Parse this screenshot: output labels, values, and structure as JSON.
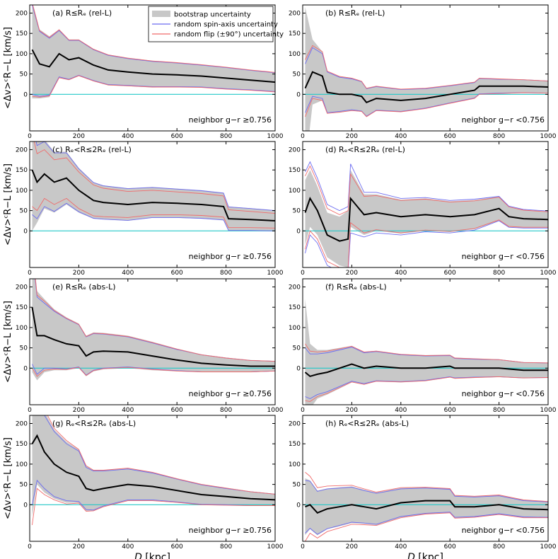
{
  "chart_data": {
    "type": "line",
    "x_label_var": "D",
    "x_label_unit": "[kpc]",
    "y_label": "<Δv>ᶜR−L [km/s]",
    "xlim": [
      0,
      1000
    ],
    "ylim": [
      -90,
      220
    ],
    "x_ticks": [
      "0",
      "200",
      "400",
      "600",
      "800",
      "1000"
    ],
    "y_ticks": [
      "0",
      "50",
      "100",
      "150",
      "200"
    ],
    "legend": {
      "position": "top-right of panel (a)",
      "entries": [
        {
          "label": "bootstrap uncertainty",
          "color": "#c8c8c8",
          "kind": "band"
        },
        {
          "label": "random spin-axis uncertainty",
          "color": "#6b6bf0",
          "kind": "line"
        },
        {
          "label": "random flip (±90°) uncertainty",
          "color": "#f06b6b",
          "kind": "line"
        }
      ]
    },
    "colors": {
      "mean": "#000000",
      "band": "#c8c8c8",
      "spin": "#6b6bf0",
      "flip": "#f06b6b",
      "zero": "#22c8c8"
    },
    "panels": [
      {
        "id": "a",
        "title": "(a) R≤Rₑ (rel-L)",
        "neighbor": "neighbor g−r ≥0.756",
        "x": [
          10,
          40,
          80,
          120,
          160,
          200,
          260,
          320,
          400,
          500,
          600,
          700,
          800,
          900,
          1000
        ],
        "mean": [
          110,
          75,
          68,
          100,
          85,
          90,
          72,
          60,
          55,
          50,
          48,
          45,
          40,
          35,
          30
        ],
        "band_half": [
          120,
          85,
          75,
          60,
          50,
          45,
          40,
          38,
          35,
          33,
          30,
          28,
          27,
          25,
          24
        ],
        "spin_half": [
          110,
          80,
          70,
          57,
          48,
          43,
          38,
          36,
          33,
          31,
          29,
          27,
          26,
          24,
          23
        ],
        "flip_half": [
          115,
          82,
          72,
          59,
          49,
          44,
          39,
          37,
          34,
          32,
          30,
          28,
          27,
          25,
          24
        ]
      },
      {
        "id": "b",
        "title": "(b) R≤Rₑ (rel-L)",
        "neighbor": "neighbor g−r <0.756",
        "x": [
          10,
          40,
          80,
          100,
          150,
          200,
          240,
          260,
          300,
          400,
          500,
          600,
          700,
          720,
          800,
          900,
          1000
        ],
        "mean": [
          15,
          55,
          45,
          5,
          0,
          0,
          -5,
          -20,
          -10,
          -15,
          -10,
          0,
          10,
          20,
          20,
          20,
          18
        ],
        "band_half": [
          200,
          80,
          60,
          50,
          45,
          40,
          38,
          35,
          30,
          28,
          25,
          22,
          20,
          20,
          18,
          16,
          15
        ],
        "spin_half": [
          60,
          60,
          55,
          50,
          42,
          38,
          36,
          34,
          29,
          27,
          24,
          21,
          19,
          19,
          17,
          16,
          15
        ],
        "flip_half": [
          70,
          65,
          60,
          52,
          44,
          40,
          37,
          35,
          30,
          28,
          25,
          22,
          20,
          20,
          18,
          16,
          15
        ]
      },
      {
        "id": "c",
        "title": "(c) Rₑ<R≤2Rₑ (rel-L)",
        "neighbor": "neighbor g−r ≥0.756",
        "x": [
          10,
          30,
          60,
          100,
          150,
          200,
          260,
          300,
          400,
          500,
          600,
          700,
          790,
          810,
          900,
          1000
        ],
        "mean": [
          150,
          120,
          140,
          120,
          130,
          100,
          75,
          70,
          65,
          70,
          68,
          65,
          60,
          30,
          28,
          25
        ],
        "band_half": [
          150,
          100,
          85,
          75,
          65,
          55,
          45,
          42,
          40,
          38,
          36,
          35,
          34,
          30,
          28,
          26
        ],
        "spin_half": [
          110,
          90,
          80,
          72,
          62,
          53,
          44,
          41,
          39,
          37,
          35,
          34,
          33,
          29,
          27,
          25
        ],
        "flip_half": [
          90,
          70,
          60,
          55,
          50,
          45,
          38,
          35,
          32,
          30,
          28,
          27,
          26,
          22,
          20,
          18
        ]
      },
      {
        "id": "d",
        "title": "(d) Rₑ<R≤2Rₑ (rel-L)",
        "neighbor": "neighbor g−r <0.756",
        "x": [
          10,
          30,
          60,
          100,
          150,
          185,
          195,
          250,
          300,
          400,
          500,
          600,
          700,
          800,
          840,
          900,
          1000
        ],
        "mean": [
          45,
          80,
          50,
          -10,
          -25,
          -20,
          80,
          40,
          45,
          35,
          40,
          35,
          40,
          55,
          35,
          30,
          28
        ],
        "band_half": [
          80,
          70,
          60,
          55,
          60,
          70,
          70,
          50,
          45,
          42,
          40,
          38,
          36,
          30,
          25,
          22,
          20
        ],
        "spin_half": [
          100,
          90,
          80,
          75,
          75,
          80,
          85,
          55,
          50,
          45,
          42,
          40,
          38,
          30,
          26,
          23,
          21
        ],
        "flip_half": [
          90,
          80,
          70,
          65,
          65,
          70,
          60,
          45,
          42,
          40,
          38,
          36,
          34,
          28,
          24,
          21,
          19
        ]
      },
      {
        "id": "e",
        "title": "(e) R≤Rₑ (abs-L)",
        "neighbor": "neighbor g−r ≥0.756",
        "x": [
          10,
          30,
          60,
          100,
          150,
          200,
          230,
          260,
          300,
          400,
          500,
          600,
          700,
          800,
          900,
          1000
        ],
        "mean": [
          150,
          80,
          80,
          70,
          60,
          55,
          30,
          40,
          42,
          40,
          30,
          20,
          12,
          8,
          5,
          5
        ],
        "band_half": [
          160,
          110,
          90,
          75,
          65,
          55,
          50,
          48,
          45,
          40,
          35,
          28,
          22,
          18,
          15,
          13
        ],
        "spin_half": [
          140,
          95,
          80,
          70,
          62,
          52,
          47,
          45,
          42,
          37,
          32,
          26,
          21,
          17,
          14,
          12
        ],
        "flip_half": [
          150,
          100,
          85,
          72,
          63,
          53,
          48,
          46,
          43,
          38,
          33,
          27,
          21,
          17,
          14,
          12
        ]
      },
      {
        "id": "f",
        "title": "(f) R≤Rₑ (abs-L)",
        "neighbor": "neighbor g−r <0.756",
        "x": [
          10,
          30,
          60,
          100,
          150,
          200,
          250,
          300,
          400,
          500,
          600,
          620,
          700,
          800,
          900,
          1000
        ],
        "mean": [
          -10,
          -20,
          -15,
          -10,
          0,
          10,
          0,
          5,
          0,
          0,
          5,
          0,
          0,
          0,
          -5,
          -5
        ],
        "band_half": [
          180,
          80,
          60,
          55,
          50,
          45,
          40,
          38,
          35,
          32,
          28,
          26,
          24,
          22,
          20,
          19
        ],
        "spin_half": [
          60,
          55,
          50,
          48,
          45,
          42,
          38,
          36,
          33,
          30,
          26,
          24,
          22,
          21,
          19,
          18
        ],
        "flip_half": [
          70,
          62,
          55,
          52,
          48,
          44,
          40,
          37,
          34,
          31,
          27,
          25,
          23,
          21,
          19,
          18
        ]
      },
      {
        "id": "g",
        "title": "(g) Rₑ<R≤2Rₑ (abs-L)",
        "neighbor": "neighbor g−r ≥0.756",
        "x": [
          10,
          30,
          60,
          100,
          150,
          200,
          230,
          260,
          300,
          400,
          500,
          600,
          700,
          800,
          900,
          1000
        ],
        "mean": [
          150,
          170,
          130,
          100,
          80,
          70,
          40,
          35,
          40,
          50,
          45,
          35,
          25,
          20,
          15,
          12
        ],
        "band_half": [
          180,
          120,
          100,
          85,
          75,
          65,
          55,
          50,
          45,
          40,
          35,
          30,
          26,
          22,
          18,
          15
        ],
        "spin_half": [
          150,
          110,
          90,
          80,
          70,
          62,
          52,
          48,
          43,
          38,
          33,
          28,
          24,
          20,
          17,
          14
        ],
        "flip_half": [
          200,
          130,
          105,
          88,
          78,
          66,
          56,
          50,
          45,
          40,
          35,
          29,
          25,
          21,
          17,
          14
        ]
      },
      {
        "id": "h",
        "title": "(h) Rₑ<R≤2Rₑ (abs-L)",
        "neighbor": "neighbor g−r <0.756",
        "x": [
          10,
          30,
          60,
          100,
          150,
          200,
          250,
          300,
          400,
          500,
          600,
          620,
          700,
          800,
          900,
          1000
        ],
        "mean": [
          -5,
          0,
          -20,
          -10,
          -5,
          0,
          -5,
          -10,
          5,
          10,
          10,
          -5,
          -5,
          0,
          -10,
          -12
        ],
        "band_half": [
          70,
          60,
          55,
          50,
          48,
          45,
          42,
          40,
          36,
          33,
          30,
          28,
          26,
          24,
          22,
          20
        ],
        "spin_half": [
          65,
          58,
          53,
          49,
          46,
          43,
          40,
          38,
          34,
          31,
          28,
          26,
          24,
          22,
          20,
          19
        ],
        "flip_half": [
          85,
          70,
          62,
          56,
          52,
          48,
          44,
          41,
          37,
          33,
          30,
          28,
          26,
          24,
          22,
          20
        ]
      }
    ]
  }
}
